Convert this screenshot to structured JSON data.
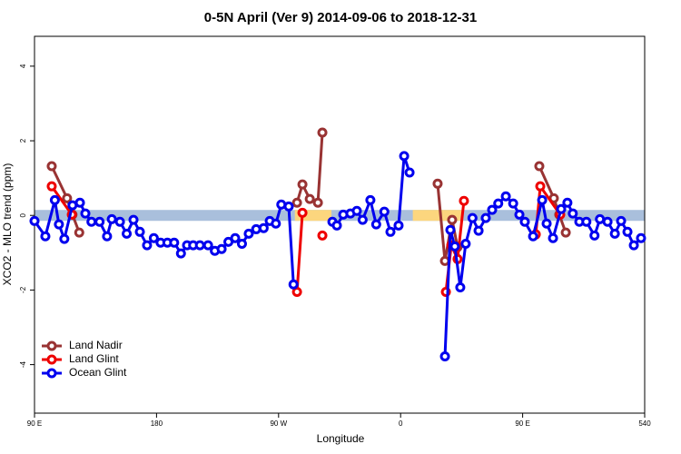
{
  "chart_data": {
    "type": "line",
    "title": "0-5N April (Ver 9)   2014-09-06 to 2018-12-31",
    "xlabel": "Longitude",
    "ylabel": "XCO2 - MLO trend (ppm)",
    "xlim": [
      90,
      540
    ],
    "ylim": [
      -5.3,
      4.8
    ],
    "xticks": [
      {
        "value": 90,
        "label": "90 E"
      },
      180,
      {
        "value": 270,
        "label": "90 W"
      },
      {
        "value": 360,
        "label": "0"
      },
      {
        "value": 450,
        "label": "90 E"
      },
      540
    ],
    "yticks": [
      -4,
      -2,
      0,
      2,
      4
    ],
    "legend": "bottom-left",
    "band": {
      "color": "#a9bfdc",
      "highlight_color": "#fcd67e",
      "highlights": [
        [
          282,
          309
        ],
        [
          369,
          406
        ]
      ]
    },
    "series": [
      {
        "name": "Land Nadir",
        "color": "#993333",
        "x": [
          102.7,
          114,
          118,
          123,
          null,
          283.6,
          287.6,
          293,
          299,
          302.3,
          null,
          387.3,
          392.7,
          398,
          402,
          null,
          462.3,
          473,
          477,
          481.8
        ],
        "values": [
          1.32,
          0.46,
          0.02,
          -0.46,
          null,
          0.34,
          0.83,
          0.44,
          0.34,
          2.22,
          null,
          0.85,
          -1.22,
          -0.12,
          -0.85,
          null,
          1.32,
          0.46,
          0.02,
          -0.46
        ]
      },
      {
        "name": "Land Glint",
        "color": "#ee0000",
        "x": [
          102.7,
          117.5,
          null,
          283.6,
          287.6,
          null,
          302.3,
          null,
          393.4,
          397.4,
          402,
          406.7,
          null,
          459.7,
          463,
          477.7
        ],
        "values": [
          0.78,
          0.02,
          null,
          -2.05,
          0.07,
          null,
          -0.54,
          null,
          -2.05,
          -0.8,
          -1.17,
          0.39,
          null,
          -0.51,
          0.78,
          0.02
        ]
      },
      {
        "name": "Ocean Glint",
        "color": "#0000ee",
        "x": [
          90,
          98,
          105,
          108,
          112,
          118,
          123.5,
          127.5,
          132,
          138,
          143.5,
          147,
          153,
          158,
          163,
          167.7,
          173,
          178,
          183,
          188,
          193,
          198,
          202.5,
          207,
          212,
          218,
          223,
          228,
          233,
          238,
          243,
          248,
          253.5,
          259,
          263.5,
          268,
          272,
          277.5,
          281,
          null,
          309.7,
          313,
          317.7,
          323,
          327.7,
          332,
          337.7,
          342,
          348,
          352.5,
          358.5,
          362.6,
          366.6,
          null,
          392.7,
          396.7,
          400,
          404,
          408,
          413,
          417.5,
          422.8,
          427.5,
          432,
          437.6,
          443,
          447.6,
          451.6,
          457.7,
          464.4,
          467.7,
          472.4,
          478.4,
          483,
          487,
          491.8,
          497,
          503,
          507,
          512.6,
          518,
          522.6,
          527.3,
          532,
          537.3
        ],
        "values": [
          -0.15,
          -0.56,
          0.41,
          -0.24,
          -0.63,
          0.27,
          0.34,
          0.05,
          -0.17,
          -0.17,
          -0.56,
          -0.1,
          -0.17,
          -0.49,
          -0.12,
          -0.44,
          -0.8,
          -0.61,
          -0.73,
          -0.73,
          -0.73,
          -1.02,
          -0.8,
          -0.8,
          -0.8,
          -0.8,
          -0.95,
          -0.9,
          -0.71,
          -0.61,
          -0.76,
          -0.49,
          -0.37,
          -0.34,
          -0.15,
          -0.22,
          0.29,
          0.24,
          -1.85,
          null,
          -0.17,
          -0.27,
          0.02,
          0.05,
          0.12,
          -0.12,
          0.41,
          -0.24,
          0.1,
          -0.44,
          -0.27,
          1.59,
          1.15,
          null,
          -3.78,
          -0.39,
          -0.83,
          -1.93,
          -0.76,
          -0.07,
          -0.41,
          -0.07,
          0.15,
          0.32,
          0.51,
          0.32,
          0.02,
          -0.17,
          -0.56,
          0.41,
          -0.22,
          -0.61,
          0.17,
          0.34,
          0.05,
          -0.17,
          -0.17,
          -0.54,
          -0.1,
          -0.17,
          -0.49,
          -0.15,
          -0.44,
          -0.8,
          -0.61
        ]
      }
    ]
  }
}
